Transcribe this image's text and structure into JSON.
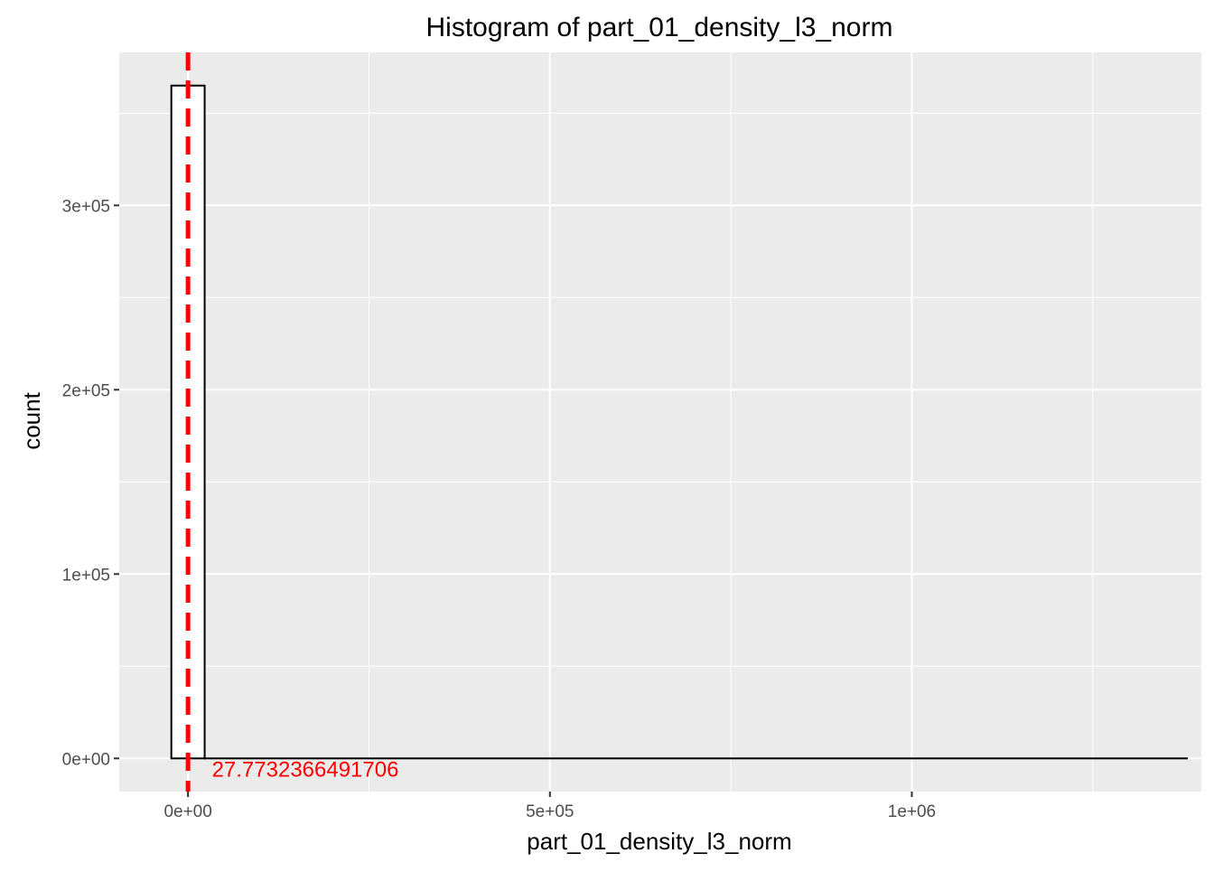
{
  "chart_data": {
    "type": "bar",
    "title": "Histogram of  part_01_density_l3_norm",
    "xlabel": "part_01_density_l3_norm",
    "ylabel": "count",
    "xlim": [
      -95000,
      1400000
    ],
    "ylim": [
      -18000,
      383000
    ],
    "x_ticks": [
      {
        "value": 0,
        "label": "0e+00"
      },
      {
        "value": 500000,
        "label": "5e+05"
      },
      {
        "value": 1000000,
        "label": "1e+06"
      }
    ],
    "y_ticks": [
      {
        "value": 0,
        "label": "0e+00"
      },
      {
        "value": 100000,
        "label": "1e+05"
      },
      {
        "value": 200000,
        "label": "2e+05"
      },
      {
        "value": 300000,
        "label": "3e+05"
      }
    ],
    "x_minor_grid": [
      250000,
      750000,
      1250000
    ],
    "y_minor_grid": [
      50000,
      150000,
      250000,
      350000
    ],
    "bins": [
      {
        "x0": -23000,
        "x1": 23000,
        "count": 365000
      },
      {
        "x0": 23000,
        "x1": 1380000,
        "count": 0
      }
    ],
    "vline": {
      "x": 27.7732366491706,
      "color": "#ff0000",
      "style": "dashed"
    },
    "annotation": {
      "text": "27.7732366491706",
      "x": 33000,
      "y": -2000,
      "color": "#ff0000"
    },
    "grid": true,
    "legend": "none",
    "colors": {
      "panel_bg": "#ebebeb",
      "grid": "#ffffff",
      "bar_fill": "#ffffff",
      "bar_outline": "#000000",
      "axis_text": "#4d4d4d",
      "title": "#000000"
    }
  }
}
